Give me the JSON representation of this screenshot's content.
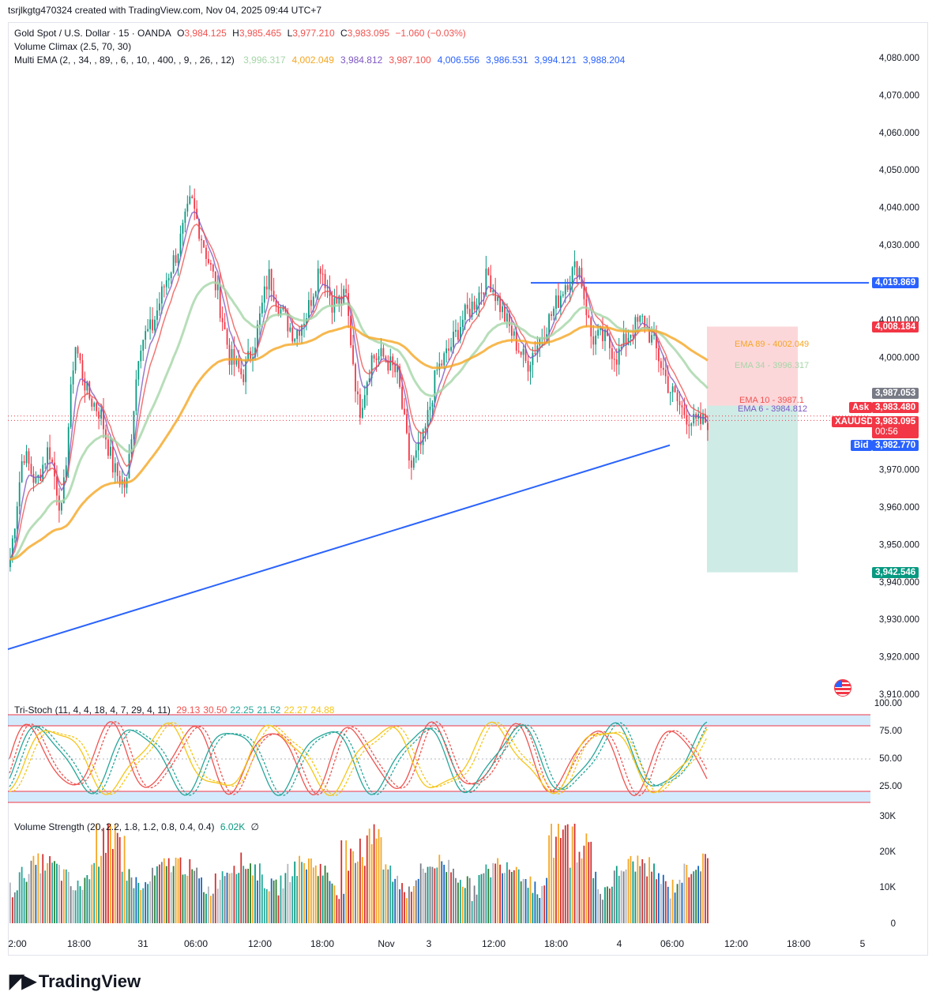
{
  "header": {
    "created": "tsrjlkgtg470324 created with TradingView.com, Nov 04, 2025 09:44 UTC+7"
  },
  "legend": {
    "symbol": "Gold Spot / U.S. Dollar · 15 · OANDA",
    "o_label": "O",
    "o": "3,984.125",
    "h_label": "H",
    "h": "3,985.465",
    "l_label": "L",
    "l": "3,977.210",
    "c_label": "C",
    "c": "3,983.095",
    "chg": "−1.060 (−0.03%)",
    "volume_climax": "Volume Climax (2.5, 70, 30)",
    "multi_ema": "Multi EMA (2, , 34, , 89, , 6, , 10, , 400, , 9, , 26, , 12)",
    "ema_values": [
      {
        "v": "3,996.317",
        "color": "#a5d6a7"
      },
      {
        "v": "4,002.049",
        "color": "#f5a623"
      },
      {
        "v": "3,984.812",
        "color": "#7e57c2"
      },
      {
        "v": "3,987.100",
        "color": "#ef5350"
      },
      {
        "v": "4,006.556",
        "color": "#2962ff"
      },
      {
        "v": "3,986.531",
        "color": "#2962ff"
      },
      {
        "v": "3,994.121",
        "color": "#2962ff"
      },
      {
        "v": "3,988.204",
        "color": "#2962ff"
      }
    ]
  },
  "price_axis": {
    "ticks": [
      "4,080.000",
      "4,070.000",
      "4,060.000",
      "4,050.000",
      "4,040.000",
      "4,030.000",
      "4,010.000",
      "4,000.000",
      "3,970.000",
      "3,960.000",
      "3,950.000",
      "3,940.000",
      "3,930.000",
      "3,920.000",
      "3,910.000"
    ]
  },
  "tags": {
    "resistance": "4,019.869",
    "stop": "4,008.184",
    "ema26": "3,987.053",
    "ask_label": "Ask",
    "ask": "3,983.480",
    "symbol": "XAUUSD",
    "last": "3,983.095",
    "countdown": "00:56",
    "bid_label": "Bid",
    "bid": "3,982.770",
    "target": "3,942.546"
  },
  "position": {
    "ema89": "EMA 89 - 4002.049",
    "ema34": "EMA 34 - 3996.317",
    "ema10": "EMA 10 - 3987.1",
    "ema6": "EMA 6 - 3984.812"
  },
  "stoch": {
    "title": "Tri-Stoch (11, 4, 4, 18, 4, 7, 29, 4, 11)",
    "values": [
      {
        "v": "29.13",
        "color": "#ef5350"
      },
      {
        "v": "30.50",
        "color": "#ef5350"
      },
      {
        "v": "22.25",
        "color": "#26a69a"
      },
      {
        "v": "21.52",
        "color": "#26a69a"
      },
      {
        "v": "22.27",
        "color": "#f5c518"
      },
      {
        "v": "24.88",
        "color": "#f5c518"
      }
    ],
    "ticks": [
      "100.00",
      "75.00",
      "50.00",
      "25.00"
    ]
  },
  "volume": {
    "title": "Volume Strength (20, 2.2, 1.8, 1.2, 0.8, 0.4, 0.4)",
    "value": "6.02K",
    "extra": "∅",
    "ticks": [
      "30K",
      "20K",
      "10K",
      "0"
    ]
  },
  "time_axis": [
    {
      "t": "2:00"
    },
    {
      "t": "18:00"
    },
    {
      "t": "31"
    },
    {
      "t": "06:00"
    },
    {
      "t": "12:00"
    },
    {
      "t": "18:00"
    },
    {
      "t": "Nov"
    },
    {
      "t": "3"
    },
    {
      "t": "12:00"
    },
    {
      "t": "18:00"
    },
    {
      "t": "4"
    },
    {
      "t": "06:00"
    },
    {
      "t": "12:00"
    },
    {
      "t": "18:00"
    },
    {
      "t": "5"
    }
  ],
  "brand": {
    "name": "TradingView"
  },
  "chart_data": {
    "type": "candlestick",
    "title": "Gold Spot / U.S. Dollar · 15 · OANDA",
    "ylim": [
      3908,
      4085
    ],
    "close_path_approx": [
      [
        "Oct 30 22:00",
        3946
      ],
      [
        "Oct 30 23:30",
        3975
      ],
      [
        "Oct 31 02:00",
        3966
      ],
      [
        "Oct 31 05:00",
        3976
      ],
      [
        "Oct 31 08:00",
        3958
      ],
      [
        "Oct 31 11:00",
        4004
      ],
      [
        "Oct 31 13:00",
        3990
      ],
      [
        "Oct 31 15:00",
        3985
      ],
      [
        "Oct 31 17:00",
        3970
      ],
      [
        "Oct 31 19:30",
        3965
      ],
      [
        "Oct 31 22:00",
        4004
      ],
      [
        "Nov 1 00:00",
        4008
      ],
      [
        "Nov 1 02:00",
        4020
      ],
      [
        "Nov 1 04:00",
        4029
      ],
      [
        "Nov 1 05:30",
        4042
      ],
      [
        "Nov 1 07:00",
        4030
      ],
      [
        "Nov 1 08:30",
        4018
      ],
      [
        "Nov 1 10:00",
        4000
      ],
      [
        "Nov 1 11:00",
        3995
      ],
      [
        "Nov 1 12:30",
        4005
      ],
      [
        "Nov 1 14:00",
        4022
      ],
      [
        "Nov 1 15:30",
        4012
      ],
      [
        "Nov 1 17:00",
        4006
      ],
      [
        "Nov 1 18:30",
        4012
      ],
      [
        "Nov 1 19:30",
        4025
      ],
      [
        "Nov 1 21:00",
        4014
      ],
      [
        "Nov 1 22:30",
        4016
      ],
      [
        "Nov 3 00:00",
        3985
      ],
      [
        "Nov 3 01:30",
        4000
      ],
      [
        "Nov 3 03:00",
        4000
      ],
      [
        "Nov 3 04:00",
        3995
      ],
      [
        "Nov 3 05:00",
        3970
      ],
      [
        "Nov 3 06:00",
        3978
      ],
      [
        "Nov 3 07:30",
        3996
      ],
      [
        "Nov 3 09:00",
        4002
      ],
      [
        "Nov 3 10:30",
        4010
      ],
      [
        "Nov 3 12:00",
        4015
      ],
      [
        "Nov 3 13:30",
        4022
      ],
      [
        "Nov 3 14:30",
        4013
      ],
      [
        "Nov 3 15:30",
        4005
      ],
      [
        "Nov 3 16:30",
        3998
      ],
      [
        "Nov 3 18:00",
        4005
      ],
      [
        "Nov 3 19:30",
        4012
      ],
      [
        "Nov 3 21:00",
        4020
      ],
      [
        "Nov 3 22:00",
        4025
      ],
      [
        "Nov 4 00:00",
        4005
      ],
      [
        "Nov 4 01:30",
        4005
      ],
      [
        "Nov 4 02:30",
        4000
      ],
      [
        "Nov 4 03:30",
        4007
      ],
      [
        "Nov 4 04:30",
        4010
      ],
      [
        "Nov 4 05:30",
        4002
      ],
      [
        "Nov 4 06:30",
        3992
      ],
      [
        "Nov 4 07:30",
        3986
      ],
      [
        "Nov 4 08:30",
        3982
      ],
      [
        "Nov 4 09:30",
        3983
      ]
    ],
    "resistance_level": 4019.869,
    "trendline": [
      [
        "Oct 30 22:00",
        3922
      ],
      [
        "Nov 4 06:00",
        3976
      ]
    ],
    "position": {
      "entry": 3987.053,
      "stop": 4008.184,
      "target": 3942.546
    }
  }
}
